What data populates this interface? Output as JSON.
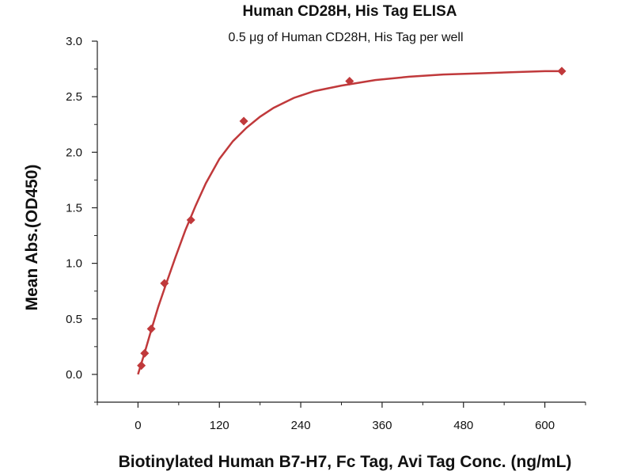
{
  "chart_data": {
    "type": "scatter",
    "title": "Human CD28H, His Tag ELISA",
    "subtitle": "0.5 μg of Human CD28H, His Tag per well",
    "xlabel": "Biotinylated Human B7-H7, Fc Tag, Avi Tag Conc. (ng/mL)",
    "ylabel": "Mean Abs.(OD450)",
    "xlim": [
      -60,
      660
    ],
    "ylim": [
      -0.25,
      3.0
    ],
    "x_ticks": [
      0,
      120,
      240,
      360,
      480,
      600
    ],
    "x_tick_labels": [
      "0",
      "120",
      "240",
      "360",
      "480",
      "600"
    ],
    "y_ticks": [
      0.0,
      0.5,
      1.0,
      1.5,
      2.0,
      2.5,
      3.0
    ],
    "y_tick_labels": [
      "0.0",
      "0.5",
      "1.0",
      "1.5",
      "2.0",
      "2.5",
      "3.0"
    ],
    "grid": false,
    "legend": "none",
    "color": "#c0393b",
    "series": [
      {
        "marker": "diamond",
        "x": [
          4.9,
          9.8,
          19.5,
          39,
          78,
          156,
          312,
          625
        ],
        "y": [
          0.08,
          0.19,
          0.41,
          0.82,
          1.39,
          2.28,
          2.64,
          2.73
        ]
      }
    ],
    "fit_curve": {
      "x": [
        0,
        10,
        20,
        30,
        40,
        55,
        70,
        85,
        100,
        120,
        140,
        160,
        180,
        200,
        230,
        260,
        300,
        350,
        400,
        450,
        500,
        550,
        600,
        625
      ],
      "y": [
        0.0,
        0.2,
        0.41,
        0.61,
        0.79,
        1.05,
        1.3,
        1.52,
        1.72,
        1.94,
        2.1,
        2.22,
        2.32,
        2.4,
        2.49,
        2.55,
        2.6,
        2.65,
        2.68,
        2.7,
        2.71,
        2.72,
        2.73,
        2.73
      ]
    }
  }
}
